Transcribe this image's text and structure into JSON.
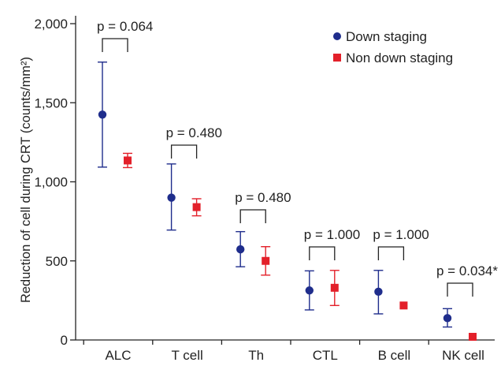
{
  "chart_data": {
    "type": "scatter",
    "ylabel": "Reduction of cell during CRT (counts/mm²)",
    "ylim": [
      0,
      2000
    ],
    "yticks": [
      0,
      500,
      1000,
      1500,
      2000
    ],
    "ytick_labels": [
      "0",
      "500",
      "1,000",
      "1,500",
      "2,000"
    ],
    "categories": [
      "ALC",
      "T cell",
      "Th",
      "CTL",
      "B cell",
      "NK cell"
    ],
    "series": [
      {
        "name": "Down staging",
        "color": "#1f2d8c",
        "marker": "circle",
        "values": [
          1425,
          900,
          573,
          313,
          305,
          138
        ],
        "err_low": [
          1093,
          695,
          463,
          190,
          165,
          82
        ],
        "err_high": [
          1757,
          1113,
          685,
          437,
          440,
          198
        ]
      },
      {
        "name": "Non down staging",
        "color": "#e3202a",
        "marker": "square",
        "values": [
          1135,
          840,
          500,
          330,
          218,
          20
        ],
        "err_low": [
          1090,
          785,
          410,
          218,
          218,
          20
        ],
        "err_high": [
          1180,
          893,
          590,
          440,
          218,
          20
        ]
      }
    ],
    "pvalues": [
      "p = 0.064",
      "p = 0.480",
      "p = 0.480",
      "p = 1.000",
      "p = 1.000",
      "p = 0.034*"
    ],
    "legend_position": "top-right"
  }
}
